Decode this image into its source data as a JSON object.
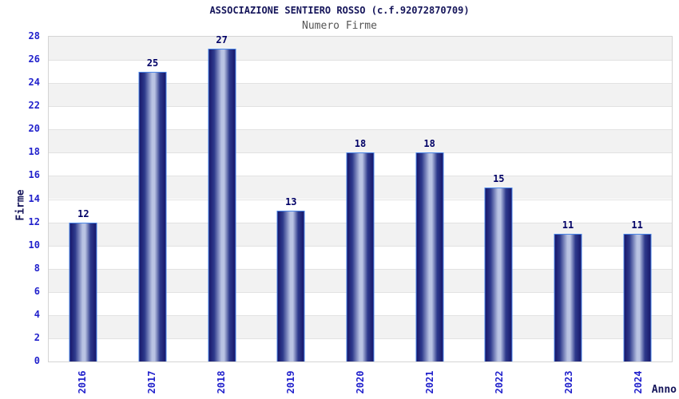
{
  "chart_data": {
    "type": "bar",
    "title": "ASSOCIAZIONE SENTIERO ROSSO (c.f.92072870709)",
    "subtitle": "Numero Firme",
    "categories": [
      "2016",
      "2017",
      "2018",
      "2019",
      "2020",
      "2021",
      "2022",
      "2023",
      "2024"
    ],
    "values": [
      12,
      25,
      27,
      13,
      18,
      18,
      15,
      11,
      11
    ],
    "xlabel": "Anno",
    "ylabel": "Firme",
    "ylim": [
      0,
      28
    ],
    "ytick_step": 2,
    "y_ticks": [
      0,
      2,
      4,
      6,
      8,
      10,
      12,
      14,
      16,
      18,
      20,
      22,
      24,
      26,
      28
    ],
    "legend": "none",
    "grid": "horizontal-bands-alternating",
    "colors": {
      "tick_label": "#2222cc",
      "value_label": "#000066",
      "title": "#15155a",
      "subtitle": "#555555",
      "axis_title": "#15155a",
      "bar_dark": "#17176b",
      "bar_mid": "#2e3a8c",
      "bar_highlight": "#b9c3e3",
      "bar_border": "#4a86e8",
      "band_gray": "#f2f2f2",
      "band_white": "#ffffff",
      "grid_line": "#e2e2e2",
      "plot_border": "#d4d4d4",
      "background": "#ffffff"
    }
  }
}
